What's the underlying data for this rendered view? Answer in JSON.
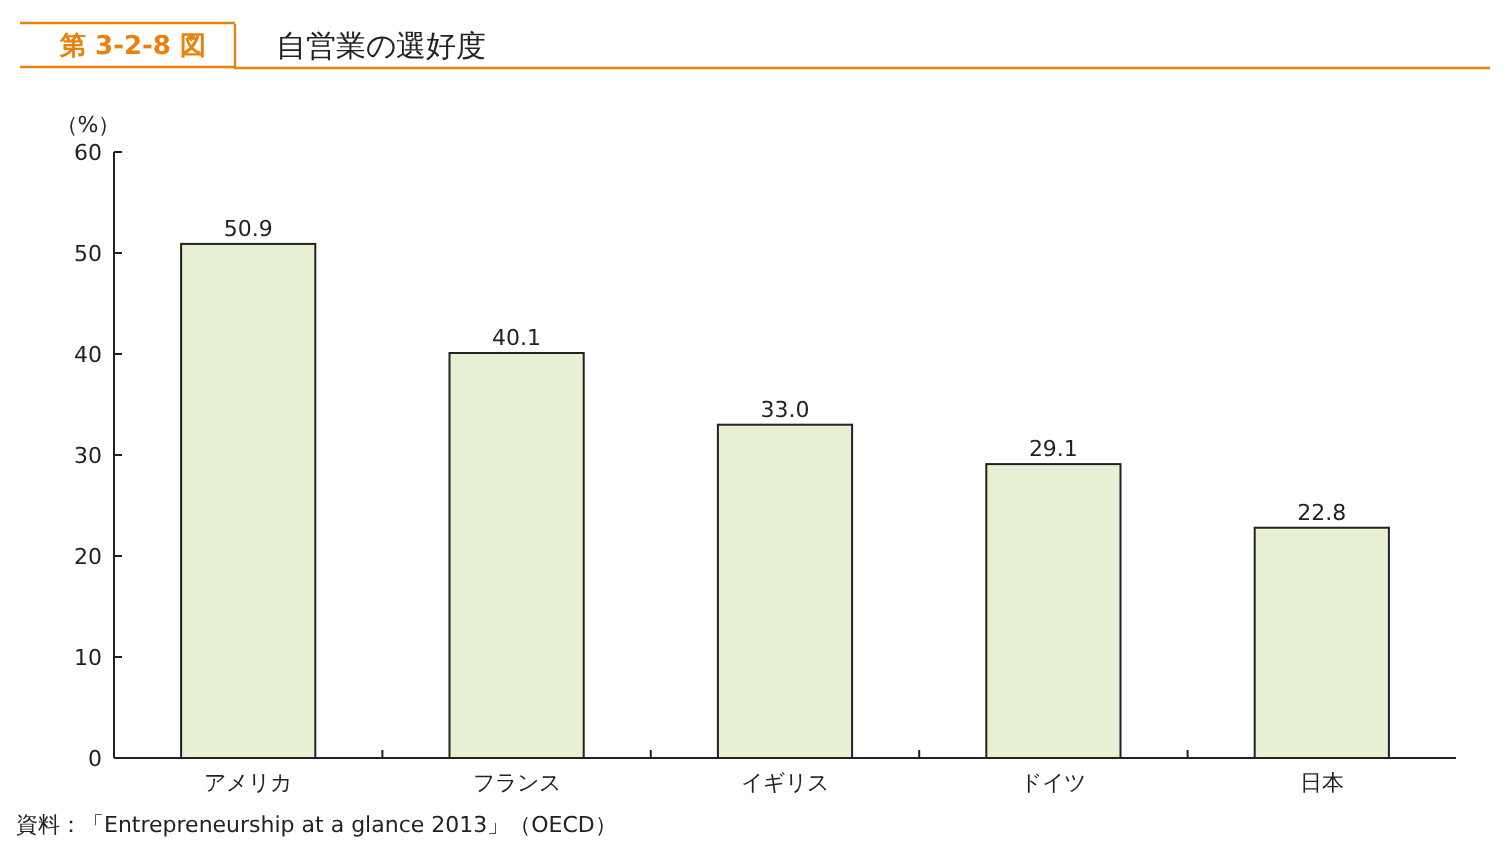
{
  "chart_data": {
    "type": "bar",
    "subtitle": "第 3-2-8 図",
    "title": "自営業の選好度",
    "ylabel": "（%）",
    "categories": [
      "アメリカ",
      "フランス",
      "イギリス",
      "ドイツ",
      "日本"
    ],
    "values": [
      50.9,
      40.1,
      33.0,
      29.1,
      22.8
    ],
    "value_labels": [
      "50.9",
      "40.1",
      "33.0",
      "29.1",
      "22.8"
    ],
    "color": "#e8f0d4",
    "ylim": [
      0,
      60
    ],
    "yticks": [
      0,
      10,
      20,
      30,
      40,
      50,
      60
    ],
    "annotations": [
      "資料：「Entrepreneurship at a glance 2013」（OECD）"
    ]
  }
}
